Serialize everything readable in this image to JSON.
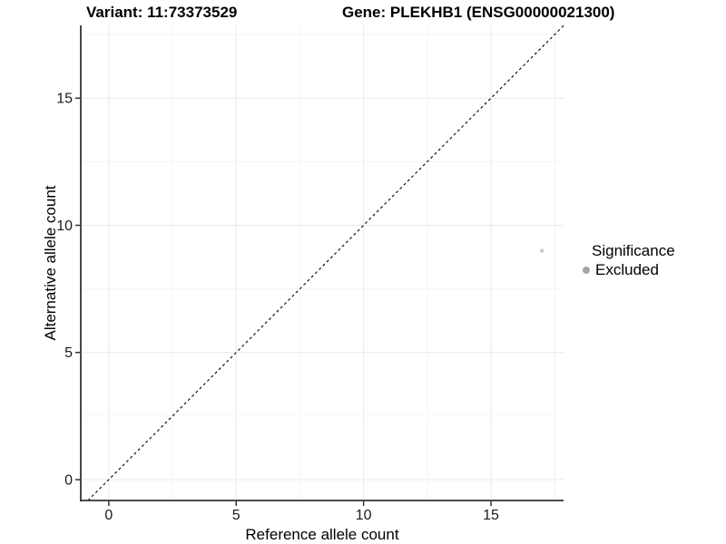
{
  "chart_data": {
    "type": "scatter",
    "title_left": "Variant: 11:73373529",
    "title_right": "Gene: PLEKHB1 (ENSG00000021300)",
    "xlabel": "Reference allele count",
    "ylabel": "Alternative allele count",
    "xlim": [
      -1.1,
      17.85
    ],
    "ylim": [
      -0.82,
      17.86
    ],
    "x_major_ticks": [
      0,
      5,
      10,
      15
    ],
    "y_major_ticks": [
      0,
      5,
      10,
      15
    ],
    "x_minor_ticks": [
      2.5,
      7.5,
      12.5,
      17.5
    ],
    "y_minor_ticks": [
      2.5,
      7.5,
      12.5,
      17.5
    ],
    "grid": true,
    "series": [
      {
        "name": "Excluded",
        "color": "#c8c8c8",
        "point_radius": 2.2,
        "points": [
          {
            "x": 17,
            "y": 9
          }
        ]
      }
    ],
    "reference_line": {
      "type": "identity",
      "slope": 1,
      "intercept": 0,
      "style": "dashed",
      "color": "#000000"
    },
    "legend": {
      "title": "Significance",
      "position": "right",
      "items": [
        {
          "label": "Excluded",
          "color": "#a5a5a5"
        }
      ]
    }
  },
  "colors": {
    "background": "#ffffff",
    "axis_line": "#333333",
    "tick_mark": "#333333",
    "tick_label": "#1a1a1a",
    "grid_major": "#e9e9e9",
    "grid_minor": "#f5f5f5"
  }
}
